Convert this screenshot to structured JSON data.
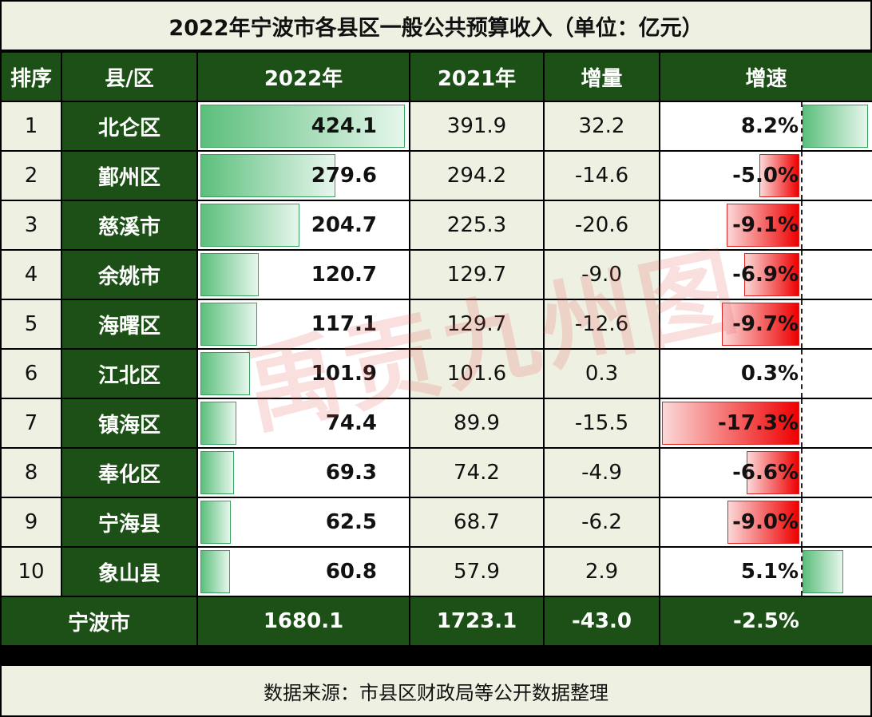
{
  "title": "2022年宁波市各县区一般公共预算收入（单位：亿元）",
  "headers": {
    "rank": "排序",
    "district": "县/区",
    "y2022": "2022年",
    "y2021": "2021年",
    "delta": "增量",
    "growth": "增速"
  },
  "rows": [
    {
      "rank": "1",
      "name": "北仑区",
      "y2022": "424.1",
      "y2021": "391.9",
      "delta": "32.2",
      "growth": "8.2%"
    },
    {
      "rank": "2",
      "name": "鄞州区",
      "y2022": "279.6",
      "y2021": "294.2",
      "delta": "-14.6",
      "growth": "-5.0%"
    },
    {
      "rank": "3",
      "name": "慈溪市",
      "y2022": "204.7",
      "y2021": "225.3",
      "delta": "-20.6",
      "growth": "-9.1%"
    },
    {
      "rank": "4",
      "name": "余姚市",
      "y2022": "120.7",
      "y2021": "129.7",
      "delta": "-9.0",
      "growth": "-6.9%"
    },
    {
      "rank": "5",
      "name": "海曙区",
      "y2022": "117.1",
      "y2021": "129.7",
      "delta": "-12.6",
      "growth": "-9.7%"
    },
    {
      "rank": "6",
      "name": "江北区",
      "y2022": "101.9",
      "y2021": "101.6",
      "delta": "0.3",
      "growth": "0.3%"
    },
    {
      "rank": "7",
      "name": "镇海区",
      "y2022": "74.4",
      "y2021": "89.9",
      "delta": "-15.5",
      "growth": "-17.3%"
    },
    {
      "rank": "8",
      "name": "奉化区",
      "y2022": "69.3",
      "y2021": "74.2",
      "delta": "-4.9",
      "growth": "-6.6%"
    },
    {
      "rank": "9",
      "name": "宁海县",
      "y2022": "62.5",
      "y2021": "68.7",
      "delta": "-6.2",
      "growth": "-9.0%"
    },
    {
      "rank": "10",
      "name": "象山县",
      "y2022": "60.8",
      "y2021": "57.9",
      "delta": "2.9",
      "growth": "5.1%"
    }
  ],
  "total": {
    "name": "宁波市",
    "y2022": "1680.1",
    "y2021": "1723.1",
    "delta": "-43.0",
    "growth": "-2.5%"
  },
  "footer": "数据来源：市县区财政局等公开数据整理",
  "watermark": "禹贡九州图",
  "colors": {
    "header_green": "#1c5016",
    "bar_green": "#5cbf7c",
    "bar_red": "#ee0000",
    "cream": "#eef0e2"
  },
  "chart_data": {
    "type": "table",
    "title": "2022年宁波市各县区一般公共预算收入（单位：亿元）",
    "columns": [
      "排序",
      "县/区",
      "2022年",
      "2021年",
      "增量",
      "增速"
    ],
    "categories": [
      "北仑区",
      "鄞州区",
      "慈溪市",
      "余姚市",
      "海曙区",
      "江北区",
      "镇海区",
      "奉化区",
      "宁海县",
      "象山县"
    ],
    "series": [
      {
        "name": "2022年",
        "values": [
          424.1,
          279.6,
          204.7,
          120.7,
          117.1,
          101.9,
          74.4,
          69.3,
          62.5,
          60.8
        ]
      },
      {
        "name": "2021年",
        "values": [
          391.9,
          294.2,
          225.3,
          129.7,
          129.7,
          101.6,
          89.9,
          74.2,
          68.7,
          57.9
        ]
      },
      {
        "name": "增量",
        "values": [
          32.2,
          -14.6,
          -20.6,
          -9.0,
          -12.6,
          0.3,
          -15.5,
          -4.9,
          -6.2,
          2.9
        ]
      },
      {
        "name": "增速(%)",
        "values": [
          8.2,
          -5.0,
          -9.1,
          -6.9,
          -9.7,
          0.3,
          -17.3,
          -6.6,
          -9.0,
          5.1
        ]
      }
    ],
    "total": {
      "name": "宁波市",
      "2022年": 1680.1,
      "2021年": 1723.1,
      "增量": -43.0,
      "增速(%)": -2.5
    },
    "source": "数据来源：市县区财政局等公开数据整理",
    "unit": "亿元"
  }
}
